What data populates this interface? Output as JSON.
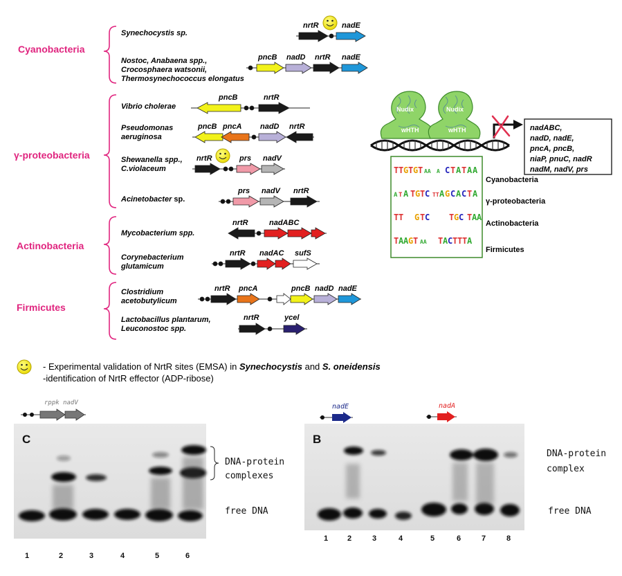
{
  "groups": {
    "cyano": "Cyanobacteria",
    "gamma": "γ-proteobacteria",
    "actino": "Actinobacteria",
    "firmi": "Firmicutes"
  },
  "organisms": {
    "synechocystis": "Synechocystis sp.",
    "nostoc_1": "Nostoc, Anabaena spp.,",
    "nostoc_2": "Crocosphaera watsonii,",
    "nostoc_3": "Thermosynechococcus elongatus",
    "vibrio": "Vibrio cholerae",
    "pseudo_1": "Pseudomonas",
    "pseudo_2": "aeruginosa",
    "shew_1": "Shewanella spp.,",
    "shew_2": "C.violaceum",
    "acineto_1": "Acinetobacter",
    "acineto_2": " sp.",
    "myco": "Mycobacterium spp.",
    "coryne_1": "Corynebacterium",
    "coryne_2": "glutamicum",
    "clost_1": "Clostridium",
    "clost_2": "acetobutylicum",
    "lacto_1": "Lactobacillus plantarum,",
    "lacto_2": "Leuconostoc spp."
  },
  "genes": {
    "g_nrtR": "nrtR",
    "g_nadE": "nadE",
    "g_pncB": "pncB",
    "g_nadD": "nadD",
    "g_pncA": "pncA",
    "g_prs": "prs",
    "g_nadV": "nadV",
    "g_nadABC": "nadABC",
    "g_nadAC": "nadAC",
    "g_sufS": "sufS",
    "g_ycel": "ycel"
  },
  "colors": {
    "nrtR": "#1a1a1a",
    "nadE": "#1f97d9",
    "pncB": "#f2f21a",
    "nadD": "#b8b0d8",
    "pncA": "#e8741a",
    "prs": "#f09aa8",
    "nadV": "#b5b5b5",
    "nadABC": "#e22020",
    "ycel": "#2a2070",
    "white": "#ffffff",
    "group_label": "#e0257f",
    "green": "#8fd468"
  },
  "targets_box": {
    "l1": "nadABC,",
    "l2": "nadD, nadE,",
    "l3": "pncA, pncB,",
    "l4": "niaP, pnuC, nadR",
    "l5": "nadM, nadV, prs"
  },
  "model": {
    "nudix": "Nudix",
    "wHTH": "wHTH"
  },
  "logo_labels": {
    "cyano": "Cyanobacteria",
    "gamma": "γ-proteobacteria",
    "actino": "Actinobacteria",
    "firmi": "Firmicutes"
  },
  "legend": {
    "l1a": "- Experimental validation of NrtR sites (EMSA) in ",
    "l1b": "Synechocystis",
    "l1c": " and ",
    "l1d": "S. oneidensis",
    "l2": "-identification of NrtR effector (ADP-ribose)"
  },
  "gel_c": {
    "panel": "C",
    "genes_label": "rppk nadV",
    "complex_1": "DNA-protein",
    "complex_2": "complexes",
    "free": "free DNA",
    "lanes": [
      "1",
      "2",
      "3",
      "4",
      "5",
      "6"
    ]
  },
  "gel_b": {
    "panel": "B",
    "nadE": "nadE",
    "nadA": "nadA",
    "complex_1": "DNA-protein",
    "complex_2": "complex",
    "free": "free DNA",
    "lanes": [
      "1",
      "2",
      "3",
      "4",
      "5",
      "6",
      "7",
      "8"
    ]
  }
}
